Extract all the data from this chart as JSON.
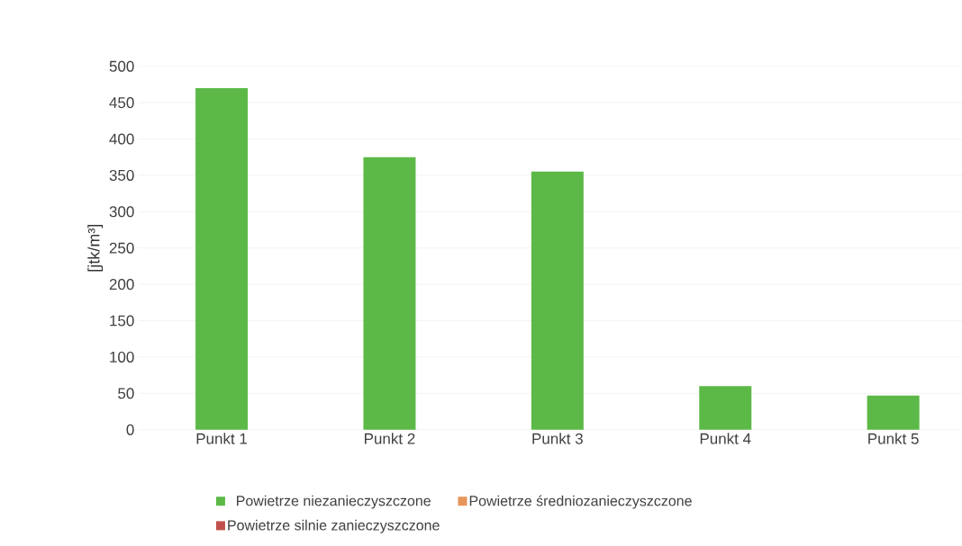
{
  "chart_data": {
    "type": "bar",
    "ylabel": "[jtk/m³]",
    "categories": [
      "Punkt 1",
      "Punkt 2",
      "Punkt 3",
      "Punkt 4",
      "Punkt 5"
    ],
    "series": [
      {
        "name": "Powietrze niezanieczyszczone",
        "color": "#5cb947",
        "values": [
          470,
          375,
          355,
          60,
          47
        ]
      },
      {
        "name": "Powietrze średniozanieczyszczone",
        "color": "#e8955a",
        "values": [
          null,
          null,
          null,
          null,
          null
        ]
      },
      {
        "name": "Powietrze silnie zanieczyszczone",
        "color": "#c0504d",
        "values": [
          null,
          null,
          null,
          null,
          null
        ]
      }
    ],
    "ylim": [
      0,
      500
    ],
    "yticks": [
      0,
      50,
      100,
      150,
      200,
      250,
      300,
      350,
      400,
      450,
      500
    ],
    "grid": "y",
    "legend": "bottom"
  }
}
